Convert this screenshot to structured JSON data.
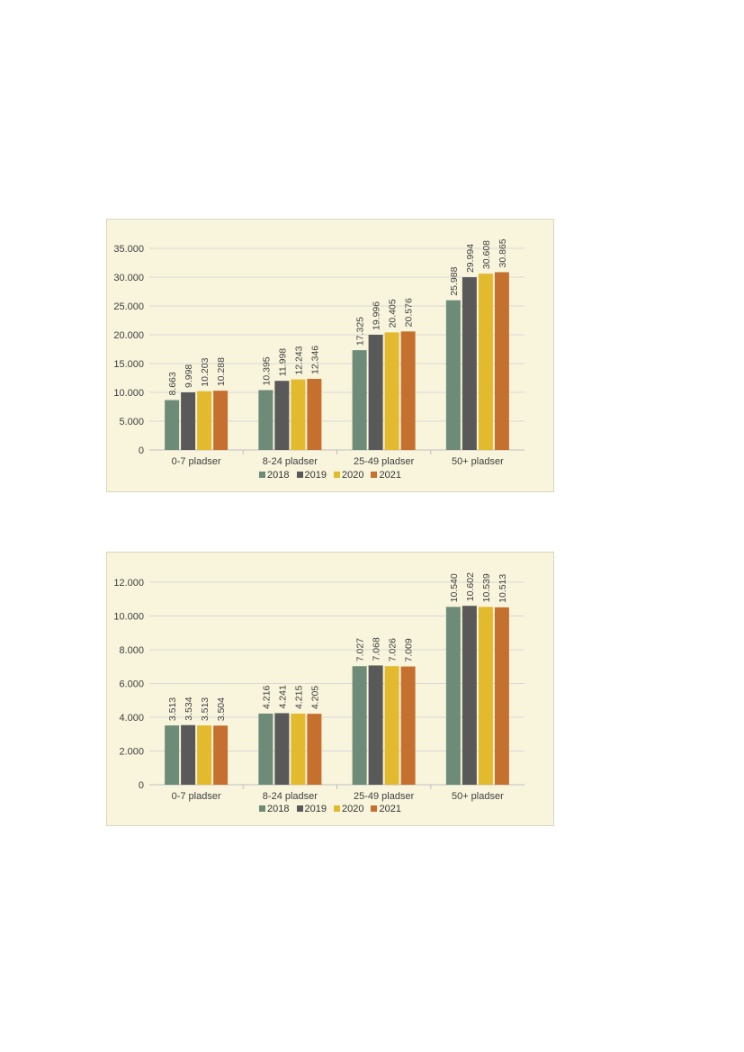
{
  "chart_data": [
    {
      "type": "bar",
      "categories": [
        "0-7 pladser",
        "8-24 pladser",
        "25-49 pladser",
        "50+ pladser"
      ],
      "series": [
        {
          "name": "2018",
          "values": [
            8663,
            10395,
            17325,
            25988
          ],
          "labels": [
            "8.663",
            "10.395",
            "17.325",
            "25.988"
          ]
        },
        {
          "name": "2019",
          "values": [
            9998,
            11998,
            19996,
            29994
          ],
          "labels": [
            "9.998",
            "11.998",
            "19.996",
            "29.994"
          ]
        },
        {
          "name": "2020",
          "values": [
            10203,
            12243,
            20405,
            30608
          ],
          "labels": [
            "10.203",
            "12.243",
            "20.405",
            "30.608"
          ]
        },
        {
          "name": "2021",
          "values": [
            10288,
            12346,
            20576,
            30865
          ],
          "labels": [
            "10.288",
            "12.346",
            "20.576",
            "30.865"
          ]
        }
      ],
      "ylim": [
        0,
        35000
      ],
      "yticks": [
        0,
        5000,
        10000,
        15000,
        20000,
        25000,
        30000,
        35000
      ],
      "ytick_labels": [
        "0",
        "5.000",
        "10.000",
        "15.000",
        "20.000",
        "25.000",
        "30.000",
        "35.000"
      ],
      "grid": true,
      "legend": "bottom",
      "title": "",
      "xlabel": "",
      "ylabel": ""
    },
    {
      "type": "bar",
      "categories": [
        "0-7 pladser",
        "8-24 pladser",
        "25-49 pladser",
        "50+ pladser"
      ],
      "series": [
        {
          "name": "2018",
          "values": [
            3513,
            4216,
            7027,
            10540
          ],
          "labels": [
            "3.513",
            "4.216",
            "7.027",
            "10.540"
          ]
        },
        {
          "name": "2019",
          "values": [
            3534,
            4241,
            7068,
            10602
          ],
          "labels": [
            "3.534",
            "4.241",
            "7.068",
            "10.602"
          ]
        },
        {
          "name": "2020",
          "values": [
            3513,
            4215,
            7026,
            10539
          ],
          "labels": [
            "3.513",
            "4.215",
            "7.026",
            "10.539"
          ]
        },
        {
          "name": "2021",
          "values": [
            3504,
            4205,
            7009,
            10513
          ],
          "labels": [
            "3.504",
            "4.205",
            "7.009",
            "10.513"
          ]
        }
      ],
      "ylim": [
        0,
        12000
      ],
      "yticks": [
        0,
        2000,
        4000,
        6000,
        8000,
        10000,
        12000
      ],
      "ytick_labels": [
        "0",
        "2.000",
        "4.000",
        "6.000",
        "8.000",
        "10.000",
        "12.000"
      ],
      "grid": true,
      "legend": "bottom",
      "title": "",
      "xlabel": "",
      "ylabel": ""
    }
  ],
  "colors": {
    "2018": "#6e8b78",
    "2019": "#595959",
    "2020": "#e3b92e",
    "2021": "#c5702f"
  }
}
